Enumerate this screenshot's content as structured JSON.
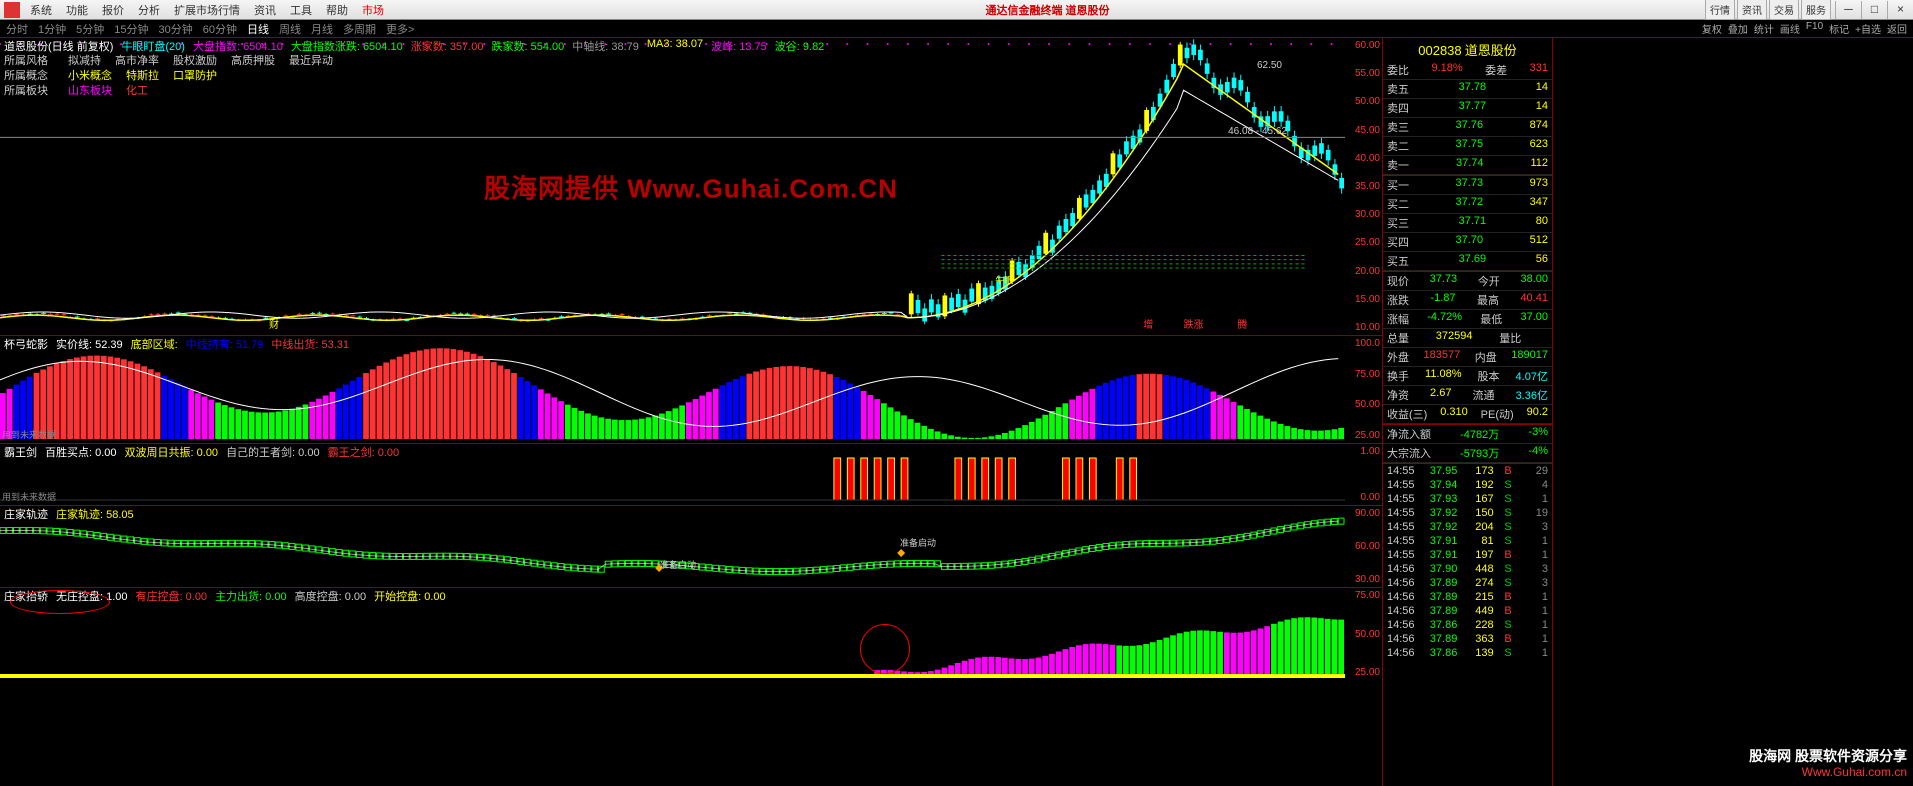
{
  "title_center": "通达信金融终端 道恩股份",
  "menus": [
    "系统",
    "功能",
    "报价",
    "分析",
    "扩展市场行情",
    "资讯",
    "工具",
    "帮助"
  ],
  "market_label": "市场",
  "right_buttons": [
    "行情",
    "资讯",
    "交易",
    "服务"
  ],
  "timeframes": [
    "分时",
    "1分钟",
    "5分钟",
    "15分钟",
    "30分钟",
    "60分钟"
  ],
  "tf_active": "日线",
  "tf_more": [
    "周线",
    "月线",
    "多周期",
    "更多>"
  ],
  "toolbar_right": [
    "复权",
    "叠加",
    "统计",
    "画线",
    "F10",
    "标记",
    "+自选",
    "返回"
  ],
  "main_header": {
    "name": "道恩股份(日线 前复权)",
    "ind": "牛眼盯盘(20)",
    "items": [
      {
        "label": "大盘指数",
        "val": "6504.10",
        "color": "#f0f"
      },
      {
        "label": "大盘指数涨跌",
        "val": "6504.10",
        "color": "#0f0"
      },
      {
        "label": "涨家数",
        "val": "357.00",
        "color": "#f33"
      },
      {
        "label": "跌家数",
        "val": "554.00",
        "color": "#0f0"
      },
      {
        "label": "中轴线",
        "val": "38.79",
        "color": "#999"
      },
      {
        "label": "MA3",
        "val": "38.07",
        "color": "#ff0"
      },
      {
        "label": "波峰",
        "val": "13.75",
        "color": "#f0f"
      },
      {
        "label": "波谷",
        "val": "9.82",
        "color": "#0f0"
      }
    ]
  },
  "attrs": [
    {
      "label": "所属风格",
      "vals": [
        {
          "t": "拟减持",
          "c": "#ccc"
        },
        {
          "t": "高市净率",
          "c": "#ccc"
        },
        {
          "t": "股权激励",
          "c": "#ccc"
        },
        {
          "t": "高质押股",
          "c": "#ccc"
        },
        {
          "t": "最近异动",
          "c": "#ccc"
        }
      ]
    },
    {
      "label": "所属概念",
      "vals": [
        {
          "t": "小米概念",
          "c": "#ff0"
        },
        {
          "t": "特斯拉",
          "c": "#ff0"
        },
        {
          "t": "口罩防护",
          "c": "#ff0"
        }
      ]
    },
    {
      "label": "所属板块",
      "vals": [
        {
          "t": "山东板块",
          "c": "#f0f"
        },
        {
          "t": "化工",
          "c": "#f33"
        }
      ]
    }
  ],
  "yaxis_main": [
    "60.00",
    "55.00",
    "50.00",
    "45.00",
    "40.00",
    "35.00",
    "30.00",
    "25.00",
    "20.00",
    "15.00",
    "10.00"
  ],
  "peak_label": "62.50",
  "price_label": "46.08 - 45.62",
  "indicator_labels": {
    "niu": "牛眼",
    "zeng": "增",
    "die": "跌涨",
    "teng": "腾",
    "cai": "财"
  },
  "panel2": {
    "title": "杯弓蛇影",
    "items": [
      {
        "label": "实价线",
        "val": "52.39",
        "color": "#fff"
      },
      {
        "label": "底部区域",
        "val": "",
        "color": "#ff0"
      },
      {
        "label": "中线持有",
        "val": "51.79",
        "color": "#00f"
      },
      {
        "label": "中线出货",
        "val": "53.31",
        "color": "#f33"
      }
    ],
    "yaxis": [
      "100.0",
      "75.00",
      "50.00",
      "25.00"
    ],
    "warn": "用到未来数据"
  },
  "panel3": {
    "title": "霸王剑",
    "items": [
      {
        "label": "百胜买点",
        "val": "0.00",
        "color": "#fff"
      },
      {
        "label": "双波周日共振",
        "val": "0.00",
        "color": "#ff0"
      },
      {
        "label": "自己的王者剑",
        "val": "0.00",
        "color": "#ccc"
      },
      {
        "label": "霸王之剑",
        "val": "0.00",
        "color": "#f33"
      }
    ],
    "yaxis": [
      "1.00",
      "0.00"
    ],
    "warn": "用到未来数据"
  },
  "panel4": {
    "title": "庄家轨迹",
    "items": [
      {
        "label": "庄家轨迹",
        "val": "58.05",
        "color": "#ff0"
      }
    ],
    "yaxis": [
      "90.00",
      "60.00",
      "30.00"
    ],
    "labels": [
      "准备启动",
      "准备启动"
    ]
  },
  "panel5": {
    "title": "庄家抬轿",
    "items": [
      {
        "label": "无庄控盘",
        "val": "1.00",
        "color": "#fff"
      },
      {
        "label": "有庄控盘",
        "val": "0.00",
        "color": "#f33"
      },
      {
        "label": "主力出货",
        "val": "0.00",
        "color": "#0f0"
      },
      {
        "label": "高度控盘",
        "val": "0.00",
        "color": "#ccc"
      },
      {
        "label": "开始控盘",
        "val": "0.00",
        "color": "#ff0"
      }
    ],
    "yaxis": [
      "75.00",
      "50.00",
      "25.00"
    ]
  },
  "stock": {
    "code": "002838",
    "name": "道恩股份",
    "weibi": {
      "label": "委比",
      "val": "9.18%",
      "color": "#f33"
    },
    "weicha": {
      "label": "委差",
      "val": "331",
      "color": "#f33"
    },
    "asks": [
      {
        "label": "卖五",
        "price": "37.78",
        "vol": "14"
      },
      {
        "label": "卖四",
        "price": "37.77",
        "vol": "14"
      },
      {
        "label": "卖三",
        "price": "37.76",
        "vol": "874"
      },
      {
        "label": "卖二",
        "price": "37.75",
        "vol": "623"
      },
      {
        "label": "卖一",
        "price": "37.74",
        "vol": "112"
      }
    ],
    "bids": [
      {
        "label": "买一",
        "price": "37.73",
        "vol": "973"
      },
      {
        "label": "买二",
        "price": "37.72",
        "vol": "347"
      },
      {
        "label": "买三",
        "price": "37.71",
        "vol": "80"
      },
      {
        "label": "买四",
        "price": "37.70",
        "vol": "512"
      },
      {
        "label": "买五",
        "price": "37.69",
        "vol": "56"
      }
    ],
    "stats": [
      {
        "l1": "现价",
        "v1": "37.73",
        "c1": "#0f0",
        "l2": "今开",
        "v2": "38.00",
        "c2": "#0f0"
      },
      {
        "l1": "涨跌",
        "v1": "-1.87",
        "c1": "#0f0",
        "l2": "最高",
        "v2": "40.41",
        "c2": "#f33"
      },
      {
        "l1": "涨幅",
        "v1": "-4.72%",
        "c1": "#0f0",
        "l2": "最低",
        "v2": "37.00",
        "c2": "#0f0"
      },
      {
        "l1": "总量",
        "v1": "372594",
        "c1": "#ff0",
        "l2": "量比",
        "v2": "",
        "c2": "#ccc"
      },
      {
        "l1": "外盘",
        "v1": "183577",
        "c1": "#f33",
        "l2": "内盘",
        "v2": "189017",
        "c2": "#0f0"
      },
      {
        "l1": "换手",
        "v1": "11.08%",
        "c1": "#ff0",
        "l2": "股本",
        "v2": "4.07亿",
        "c2": "#0ff"
      },
      {
        "l1": "净资",
        "v1": "2.67",
        "c1": "#ff0",
        "l2": "流通",
        "v2": "3.36亿",
        "c2": "#0ff"
      },
      {
        "l1": "收益(三)",
        "v1": "0.310",
        "c1": "#ff0",
        "l2": "PE(动)",
        "v2": "90.2",
        "c2": "#ff0"
      }
    ],
    "flows": [
      {
        "label": "净流入额",
        "val": "-4782万",
        "pct": "-3%"
      },
      {
        "label": "大宗流入",
        "val": "-5793万",
        "pct": "-4%"
      }
    ],
    "ticks": [
      {
        "t": "14:55",
        "p": "37.95",
        "v": "173",
        "bs": "B",
        "n": "29"
      },
      {
        "t": "14:55",
        "p": "37.94",
        "v": "192",
        "bs": "S",
        "n": "4"
      },
      {
        "t": "14:55",
        "p": "37.93",
        "v": "167",
        "bs": "S",
        "n": "1"
      },
      {
        "t": "14:55",
        "p": "37.92",
        "v": "150",
        "bs": "S",
        "n": "19"
      },
      {
        "t": "14:55",
        "p": "37.92",
        "v": "204",
        "bs": "S",
        "n": "3"
      },
      {
        "t": "14:55",
        "p": "37.91",
        "v": "81",
        "bs": "S",
        "n": "1"
      },
      {
        "t": "14:55",
        "p": "37.91",
        "v": "197",
        "bs": "B",
        "n": "1"
      },
      {
        "t": "14:56",
        "p": "37.90",
        "v": "448",
        "bs": "S",
        "n": "3"
      },
      {
        "t": "14:56",
        "p": "37.89",
        "v": "274",
        "bs": "S",
        "n": "3"
      },
      {
        "t": "14:56",
        "p": "37.89",
        "v": "215",
        "bs": "B",
        "n": "1"
      },
      {
        "t": "14:56",
        "p": "37.89",
        "v": "449",
        "bs": "B",
        "n": "1"
      },
      {
        "t": "14:56",
        "p": "37.86",
        "v": "228",
        "bs": "S",
        "n": "1"
      },
      {
        "t": "14:56",
        "p": "37.89",
        "v": "363",
        "bs": "B",
        "n": "1"
      },
      {
        "t": "14:56",
        "p": "37.86",
        "v": "139",
        "bs": "S",
        "n": "1"
      }
    ]
  },
  "watermark": "股海网提供 Www.Guhai.Com.CN",
  "footer": {
    "cn": "股海网 股票软件资源分享",
    "url": "Www.Guhai.com.cn"
  },
  "candles": {
    "count": 200,
    "base": 11.5,
    "peak_i": 176,
    "peak": 62.5,
    "end": 38,
    "ma_color": "#ff0",
    "dash_color": "#0f0"
  }
}
